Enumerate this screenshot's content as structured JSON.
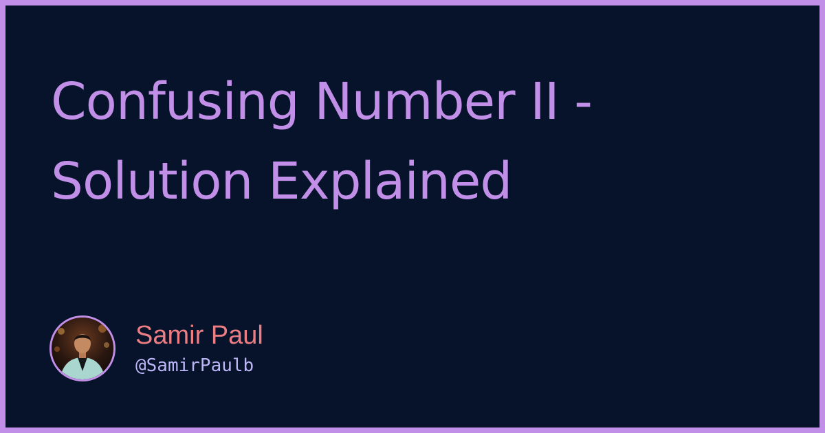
{
  "post": {
    "title": "Confusing Number II - Solution Explained"
  },
  "author": {
    "name": "Samir Paul",
    "handle": "@SamirPaulb",
    "avatar_icon": "profile-photo"
  },
  "colors": {
    "frame": "#c28fe8",
    "background": "#06132a",
    "title": "#c28fe8",
    "name": "#ec7d83",
    "handle": "#bcb6f6"
  }
}
